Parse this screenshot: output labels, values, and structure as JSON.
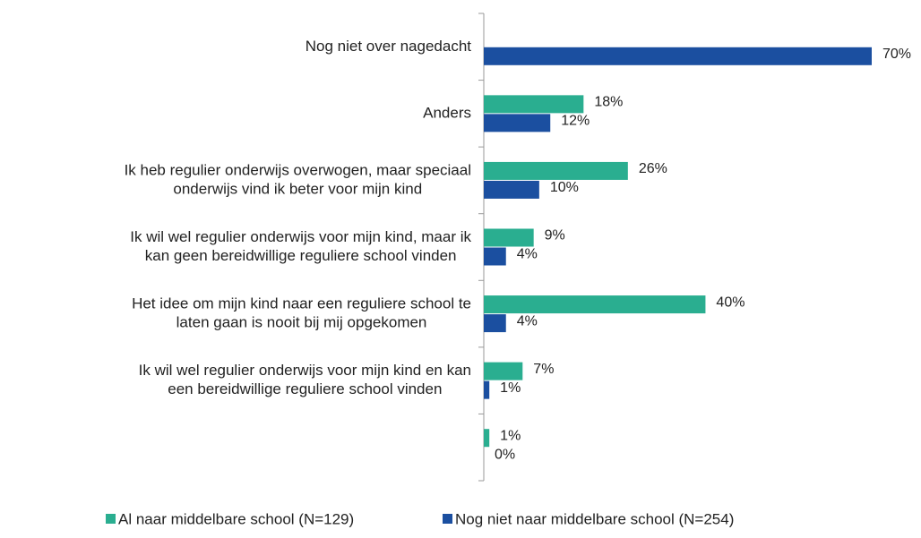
{
  "chart_data": {
    "type": "hbar",
    "categories": [
      [
        "Nog niet over nagedacht"
      ],
      [
        "Anders"
      ],
      [
        "Ik heb regulier onderwijs overwogen, maar speciaal",
        "onderwijs vind ik beter voor mijn kind"
      ],
      [
        "Ik wil wel regulier onderwijs voor mijn kind, maar ik",
        "kan geen bereidwillige reguliere school vinden"
      ],
      [
        "Het idee om mijn kind naar een reguliere school te",
        "laten gaan is nooit bij mij opgekomen"
      ],
      [
        "Ik wil wel regulier onderwijs voor mijn kind en kan",
        "een bereidwillige reguliere school vinden"
      ],
      null
    ],
    "series": [
      {
        "name": "Al naar middelbare school (N=129)",
        "color": "#2aae90",
        "values": [
          null,
          18,
          26,
          9,
          40,
          7,
          1
        ],
        "value_labels": [
          null,
          "18%",
          "26%",
          "9%",
          "40%",
          "7%",
          "1%"
        ]
      },
      {
        "name": "Nog niet naar middelbare school (N=254)",
        "color": "#1b4fa0",
        "values": [
          70,
          12,
          10,
          4,
          4,
          1,
          0
        ],
        "value_labels": [
          "70%",
          "12%",
          "10%",
          "4%",
          "4%",
          "1%",
          "0%"
        ]
      }
    ],
    "xlim": [
      0,
      70
    ]
  }
}
